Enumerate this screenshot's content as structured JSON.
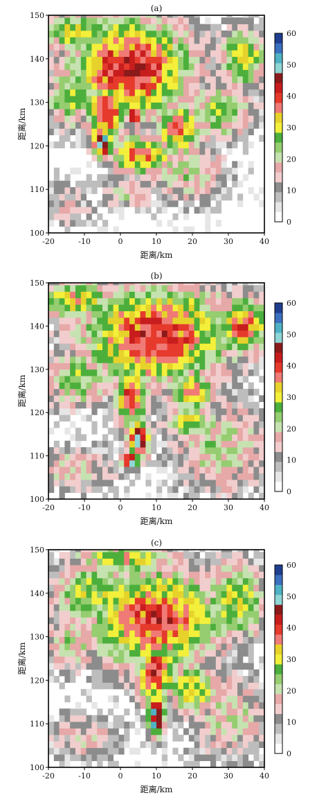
{
  "colorbar": {
    "colors": [
      "#ffffff",
      "#e6e6e6",
      "#bdbdbd",
      "#8c8c8c",
      "#f2cdcd",
      "#e7a8a8",
      "#c6e2b0",
      "#95cd70",
      "#4caf3c",
      "#f3ef3a",
      "#e6d22b",
      "#f07a76",
      "#e53a2c",
      "#c81d1d",
      "#8b1a1a",
      "#8fd6d6",
      "#4fb2c4",
      "#3b6fbf",
      "#1f3e8f"
    ],
    "tick_values": [
      0,
      10,
      20,
      30,
      40,
      50,
      60
    ]
  },
  "chart_data": [
    {
      "type": "heatmap",
      "title": "(a)",
      "xlabel": "距离/km",
      "ylabel": "距离/km",
      "xlim": [
        -20,
        40
      ],
      "ylim": [
        100,
        150
      ],
      "xticks": [
        -20,
        -10,
        0,
        10,
        20,
        30,
        40
      ],
      "yticks": [
        100,
        110,
        120,
        130,
        140,
        150
      ],
      "colorbar_range": [
        0,
        60
      ],
      "features": [
        {
          "x": 3,
          "y": 138,
          "rx": 15,
          "ry": 10,
          "value": 43
        },
        {
          "x": -4,
          "y": 128,
          "rx": 5,
          "ry": 6,
          "value": 42
        },
        {
          "x": -5,
          "y": 121,
          "rx": 2.5,
          "ry": 3,
          "value": 54
        },
        {
          "x": 4,
          "y": 127,
          "rx": 2,
          "ry": 1.5,
          "value": 48
        },
        {
          "x": 6,
          "y": 118,
          "rx": 8,
          "ry": 4,
          "value": 38
        },
        {
          "x": 16,
          "y": 124,
          "rx": 5,
          "ry": 5,
          "value": 39
        },
        {
          "x": 27,
          "y": 128,
          "rx": 9,
          "ry": 6,
          "value": 26
        },
        {
          "x": -14,
          "y": 131,
          "rx": 6,
          "ry": 6,
          "value": 28
        },
        {
          "x": 18,
          "y": 114,
          "rx": 10,
          "ry": 6,
          "value": 22
        },
        {
          "x": -15,
          "y": 106,
          "rx": 7,
          "ry": 5,
          "value": 14
        },
        {
          "x": 2,
          "y": 109,
          "rx": 6,
          "ry": 3,
          "value": 20
        },
        {
          "x": 34,
          "y": 140,
          "rx": 6,
          "ry": 6,
          "value": 32
        },
        {
          "x": -12,
          "y": 146,
          "rx": 10,
          "ry": 4,
          "value": 31
        }
      ]
    },
    {
      "type": "heatmap",
      "title": "(b)",
      "xlabel": "距离/km",
      "ylabel": "距离/km",
      "xlim": [
        -20,
        40
      ],
      "ylim": [
        100,
        150
      ],
      "xticks": [
        -20,
        -10,
        0,
        10,
        20,
        30,
        40
      ],
      "yticks": [
        100,
        110,
        120,
        130,
        140,
        150
      ],
      "colorbar_range": [
        0,
        60
      ],
      "features": [
        {
          "x": 10,
          "y": 138,
          "rx": 18,
          "ry": 10,
          "value": 42
        },
        {
          "x": 3,
          "y": 124,
          "rx": 4,
          "ry": 6,
          "value": 42
        },
        {
          "x": 5,
          "y": 114,
          "rx": 2.5,
          "ry": 4,
          "value": 52
        },
        {
          "x": 3,
          "y": 109,
          "rx": 2,
          "ry": 1.5,
          "value": 56
        },
        {
          "x": 8,
          "y": 130,
          "rx": 1.5,
          "ry": 1,
          "value": 48
        },
        {
          "x": 19,
          "y": 118,
          "rx": 6,
          "ry": 4,
          "value": 30
        },
        {
          "x": 20,
          "y": 125,
          "rx": 5,
          "ry": 4,
          "value": 36
        },
        {
          "x": -12,
          "y": 128,
          "rx": 8,
          "ry": 6,
          "value": 27
        },
        {
          "x": 28,
          "y": 112,
          "rx": 12,
          "ry": 10,
          "value": 22
        },
        {
          "x": -13,
          "y": 107,
          "rx": 10,
          "ry": 5,
          "value": 19
        },
        {
          "x": 34,
          "y": 140,
          "rx": 7,
          "ry": 6,
          "value": 38
        },
        {
          "x": -12,
          "y": 146,
          "rx": 10,
          "ry": 4,
          "value": 33
        }
      ]
    },
    {
      "type": "heatmap",
      "title": "(c)",
      "xlabel": "距离/km",
      "ylabel": "距离/km",
      "xlim": [
        -20,
        40
      ],
      "ylim": [
        100,
        150
      ],
      "xticks": [
        -20,
        -10,
        0,
        10,
        20,
        30,
        40
      ],
      "yticks": [
        100,
        110,
        120,
        130,
        140,
        150
      ],
      "colorbar_range": [
        0,
        60
      ],
      "features": [
        {
          "x": 10,
          "y": 134,
          "rx": 16,
          "ry": 10,
          "value": 41
        },
        {
          "x": 10,
          "y": 122,
          "rx": 5,
          "ry": 6,
          "value": 42
        },
        {
          "x": 10,
          "y": 112,
          "rx": 2,
          "ry": 4,
          "value": 52
        },
        {
          "x": 10,
          "y": 110,
          "rx": 1.5,
          "ry": 2,
          "value": 56
        },
        {
          "x": 20,
          "y": 118,
          "rx": 6,
          "ry": 5,
          "value": 34
        },
        {
          "x": -8,
          "y": 140,
          "rx": 10,
          "ry": 6,
          "value": 30
        },
        {
          "x": -14,
          "y": 128,
          "rx": 6,
          "ry": 5,
          "value": 24
        },
        {
          "x": 30,
          "y": 112,
          "rx": 10,
          "ry": 9,
          "value": 20
        },
        {
          "x": -10,
          "y": 107,
          "rx": 10,
          "ry": 5,
          "value": 16
        },
        {
          "x": 32,
          "y": 138,
          "rx": 8,
          "ry": 8,
          "value": 30
        },
        {
          "x": 2,
          "y": 148,
          "rx": 12,
          "ry": 3,
          "value": 33
        }
      ]
    }
  ]
}
